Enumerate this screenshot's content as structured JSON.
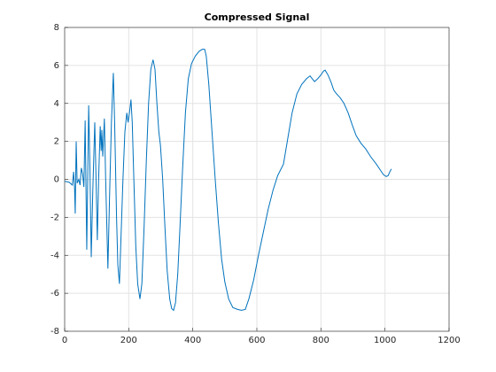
{
  "chart_data": {
    "type": "line",
    "title": "Compressed Signal",
    "x": [
      0,
      14,
      24,
      28,
      31,
      33,
      36,
      39,
      44,
      48,
      52,
      56,
      60,
      64,
      69,
      75,
      79,
      83,
      88,
      94,
      98,
      102,
      106,
      111,
      114,
      116,
      119,
      124,
      128,
      135,
      140,
      146,
      152,
      156,
      162,
      166,
      171,
      176,
      182,
      188,
      194,
      198,
      203,
      207,
      211,
      216,
      222,
      228,
      235,
      241,
      248,
      255,
      262,
      269,
      276,
      282,
      288,
      294,
      299,
      306,
      313,
      320,
      328,
      334,
      340,
      346,
      353,
      360,
      368,
      377,
      386,
      396,
      408,
      420,
      430,
      437,
      442,
      450,
      460,
      470,
      480,
      490,
      500,
      512,
      525,
      540,
      552,
      564,
      575,
      590,
      605,
      620,
      635,
      650,
      665,
      683,
      695,
      710,
      725,
      740,
      755,
      766,
      773,
      780,
      790,
      800,
      808,
      813,
      822,
      832,
      840,
      849,
      860,
      872,
      885,
      897,
      910,
      925,
      940,
      955,
      973,
      985,
      995,
      1004,
      1010,
      1015,
      1020
    ],
    "series": [
      {
        "color": "#0072bd",
        "values": [
          -0.1,
          -0.15,
          -0.3,
          0.4,
          -0.5,
          -1.8,
          2.0,
          -0.2,
          0.0,
          -0.3,
          0.6,
          0.3,
          -0.4,
          3.1,
          -3.7,
          3.9,
          0.5,
          -4.1,
          -0.5,
          3.0,
          0,
          -3.2,
          0,
          2.8,
          1.5,
          2.6,
          1.2,
          3.2,
          0,
          -4.7,
          -1,
          3,
          5.6,
          3,
          -2,
          -4.5,
          -5.5,
          -3,
          0,
          2.5,
          3.5,
          3.0,
          3.6,
          4.2,
          3,
          0,
          -3.5,
          -5.5,
          -6.3,
          -5.5,
          -2.5,
          1,
          4,
          5.8,
          6.3,
          5.8,
          4,
          2.5,
          1.8,
          0,
          -2.5,
          -4.8,
          -6.3,
          -6.8,
          -6.9,
          -6.5,
          -5,
          -2.5,
          0.5,
          3.5,
          5.3,
          6.1,
          6.5,
          6.75,
          6.85,
          6.85,
          6.5,
          5,
          2.5,
          0,
          -2.3,
          -4.2,
          -5.4,
          -6.3,
          -6.75,
          -6.85,
          -6.9,
          -6.85,
          -6.3,
          -5.3,
          -4,
          -2.8,
          -1.6,
          -0.6,
          0.2,
          0.8,
          2,
          3.5,
          4.5,
          5.0,
          5.3,
          5.45,
          5.3,
          5.15,
          5.3,
          5.5,
          5.7,
          5.75,
          5.5,
          5.1,
          4.7,
          4.5,
          4.3,
          4,
          3.5,
          2.9,
          2.3,
          1.9,
          1.6,
          1.2,
          0.8,
          0.5,
          0.25,
          0.15,
          0.2,
          0.4,
          0.55
        ]
      }
    ],
    "xlim": [
      0,
      1200
    ],
    "xticks": [
      0,
      200,
      400,
      600,
      800,
      1000,
      1200
    ],
    "ylim": [
      -8,
      8
    ],
    "yticks": [
      -8,
      -6,
      -4,
      -2,
      0,
      2,
      4,
      6,
      8
    ],
    "grid": true
  }
}
